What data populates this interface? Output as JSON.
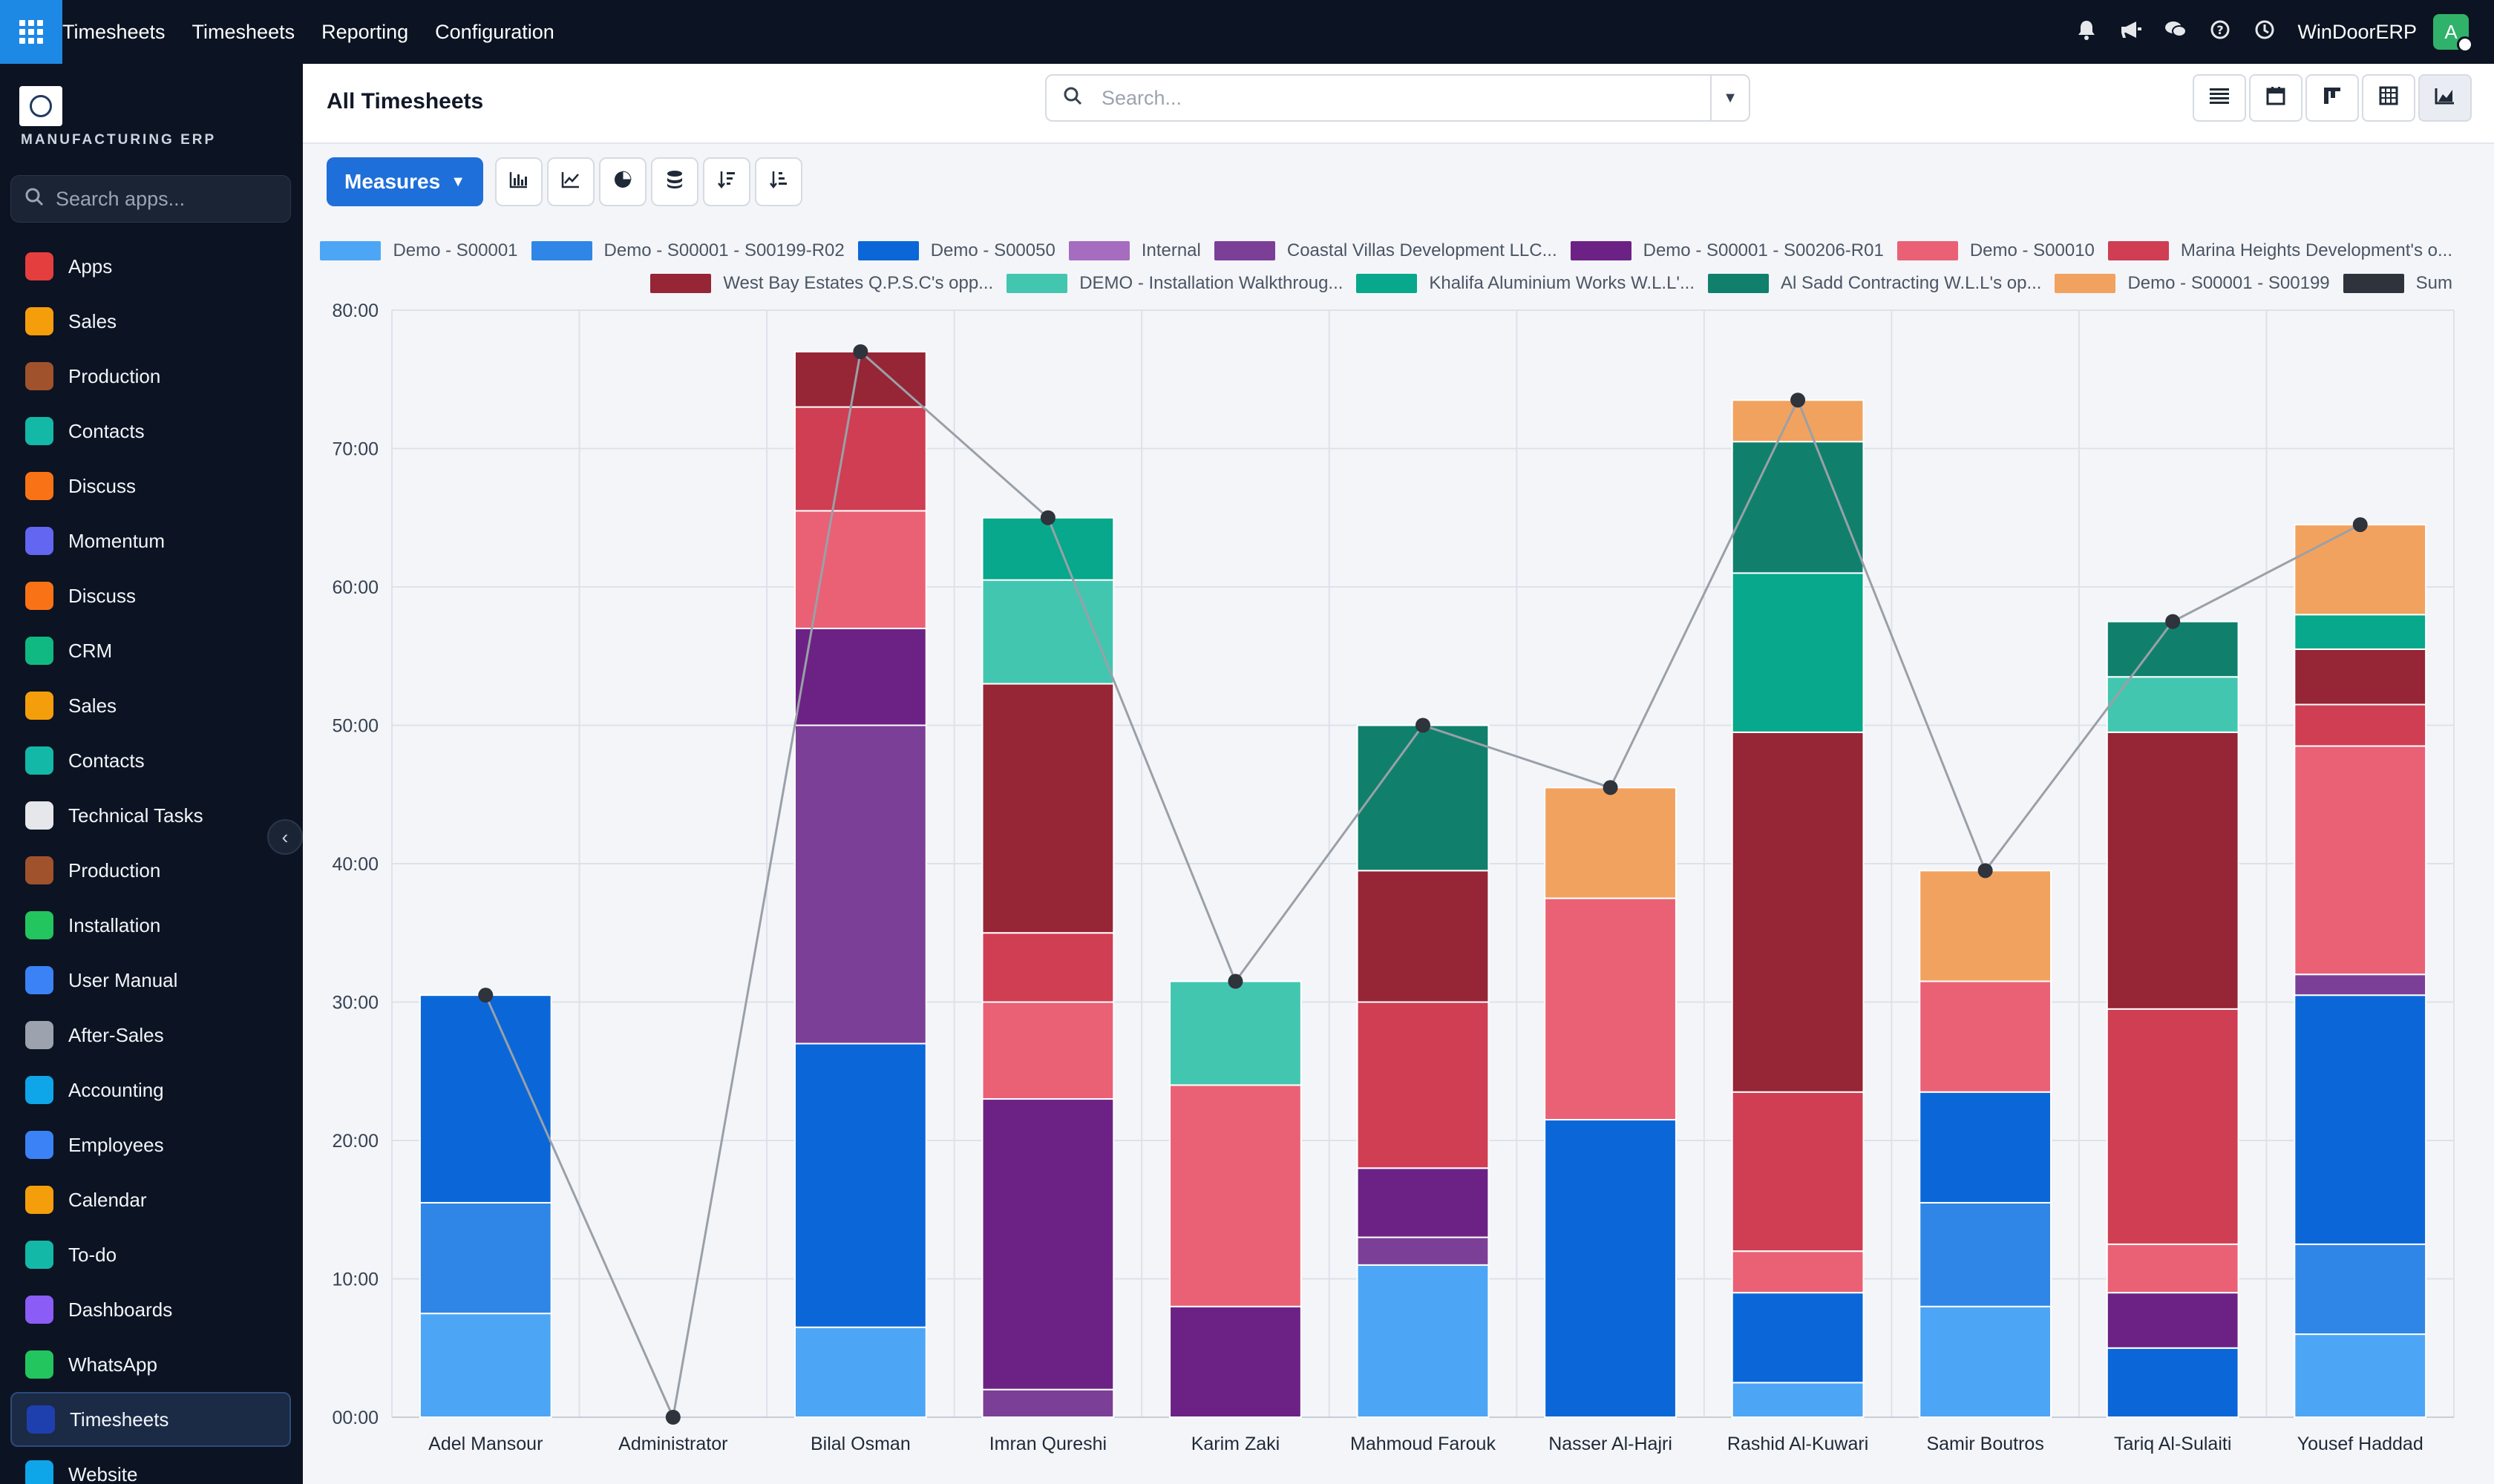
{
  "navbar": {
    "app_name": "Timesheets",
    "menu": [
      "Timesheets",
      "Reporting",
      "Configuration"
    ],
    "company": "WinDoorERP",
    "avatar_letter": "A",
    "icons": [
      "bell-icon",
      "megaphone-icon",
      "chat-icon",
      "help-icon",
      "clock-icon"
    ]
  },
  "sidebar": {
    "company_name": "MANUFACTURING ERP",
    "search_placeholder": "Search apps...",
    "items": [
      {
        "label": "Apps",
        "icon": "apps-icon",
        "color": "#e53e3e"
      },
      {
        "label": "Sales",
        "icon": "sales-icon",
        "color": "#f59e0b"
      },
      {
        "label": "Production",
        "icon": "production-icon",
        "color": "#a0522d"
      },
      {
        "label": "Contacts",
        "icon": "contacts-icon",
        "color": "#14b8a6"
      },
      {
        "label": "Discuss",
        "icon": "discuss-icon",
        "color": "#f97316"
      },
      {
        "label": "Momentum",
        "icon": "momentum-icon",
        "color": "#6366f1"
      },
      {
        "label": "Discuss",
        "icon": "discuss-icon",
        "color": "#f97316"
      },
      {
        "label": "CRM",
        "icon": "crm-icon",
        "color": "#10b981"
      },
      {
        "label": "Sales",
        "icon": "sales-icon",
        "color": "#f59e0b"
      },
      {
        "label": "Contacts",
        "icon": "contacts-icon",
        "color": "#14b8a6"
      },
      {
        "label": "Technical Tasks",
        "icon": "technical-tasks-icon",
        "color": "#e5e7eb"
      },
      {
        "label": "Production",
        "icon": "production-icon",
        "color": "#a0522d"
      },
      {
        "label": "Installation",
        "icon": "installation-icon",
        "color": "#22c55e"
      },
      {
        "label": "User Manual",
        "icon": "user-manual-icon",
        "color": "#3b82f6"
      },
      {
        "label": "After-Sales",
        "icon": "after-sales-icon",
        "color": "#9ca3af"
      },
      {
        "label": "Accounting",
        "icon": "accounting-icon",
        "color": "#0ea5e9"
      },
      {
        "label": "Employees",
        "icon": "employees-icon",
        "color": "#3b82f6"
      },
      {
        "label": "Calendar",
        "icon": "calendar-icon",
        "color": "#f59e0b"
      },
      {
        "label": "To-do",
        "icon": "todo-icon",
        "color": "#14b8a6"
      },
      {
        "label": "Dashboards",
        "icon": "dashboards-icon",
        "color": "#8b5cf6"
      },
      {
        "label": "WhatsApp",
        "icon": "whatsapp-icon",
        "color": "#22c55e"
      },
      {
        "label": "Timesheets",
        "icon": "timesheets-icon",
        "color": "#1e40af",
        "active": true
      },
      {
        "label": "Website",
        "icon": "website-icon",
        "color": "#0ea5e9"
      }
    ]
  },
  "control": {
    "title": "All Timesheets",
    "search_placeholder": "Search...",
    "views": [
      "list-view-icon",
      "calendar-view-icon",
      "kanban-view-icon",
      "pivot-view-icon",
      "graph-view-icon"
    ],
    "active_view": "graph-view-icon"
  },
  "toolbar": {
    "measures_label": "Measures",
    "buttons": [
      "bar-chart-icon",
      "line-chart-icon",
      "pie-chart-icon",
      "stacked-icon",
      "sort-descending-icon",
      "sort-ascending-icon"
    ]
  },
  "chart_data": {
    "type": "bar",
    "stacked": true,
    "categories": [
      "Adel Mansour",
      "Administrator",
      "Bilal Osman",
      "Imran Qureshi",
      "Karim Zaki",
      "Mahmoud Farouk",
      "Nasser Al-Hajri",
      "Rashid Al-Kuwari",
      "Samir Boutros",
      "Tariq Al-Sulaiti",
      "Yousef Haddad"
    ],
    "ylim": [
      0,
      80
    ],
    "yticks": [
      "00:00",
      "10:00",
      "20:00",
      "30:00",
      "40:00",
      "50:00",
      "60:00",
      "70:00",
      "80:00"
    ],
    "grid": true,
    "legend_position": "top",
    "series": [
      {
        "name": "Demo - S00001",
        "color": "#4da6f5",
        "values": [
          7.5,
          0,
          6.5,
          0,
          0,
          11,
          0,
          2.5,
          8,
          0,
          6
        ]
      },
      {
        "name": "Demo - S00001 - S00199-R02",
        "color": "#2f86e6",
        "values": [
          8,
          0,
          0,
          0,
          0,
          0,
          0,
          0,
          7.5,
          0,
          6.5
        ]
      },
      {
        "name": "Demo - S00050",
        "color": "#0b67d8",
        "values": [
          15,
          0,
          20.5,
          0,
          0,
          0,
          21.5,
          6.5,
          8,
          5,
          18
        ]
      },
      {
        "name": "Internal",
        "color": "#a66cc0",
        "values": [
          0,
          0,
          0,
          0,
          0,
          0,
          0,
          0,
          0,
          0,
          0
        ]
      },
      {
        "name": "Coastal Villas Development LLC...",
        "color": "#7c3f97",
        "values": [
          0,
          0,
          23,
          2,
          0,
          2,
          0,
          0,
          0,
          0,
          1.5
        ]
      },
      {
        "name": "Demo - S00001 - S00206-R01",
        "color": "#6c2285",
        "values": [
          0,
          0,
          7,
          21,
          8,
          5,
          0,
          0,
          0,
          4,
          0
        ]
      },
      {
        "name": "Demo - S00010",
        "color": "#ea6176",
        "values": [
          0,
          0,
          8.5,
          7,
          16,
          0,
          16,
          3,
          8,
          3.5,
          16.5
        ]
      },
      {
        "name": "Marina Heights Development's o...",
        "color": "#cf3e52",
        "values": [
          0,
          0,
          7.5,
          5,
          0,
          12,
          0,
          11.5,
          0,
          17,
          3
        ]
      },
      {
        "name": "West Bay Estates Q.P.S.C's opp...",
        "color": "#962536",
        "values": [
          0,
          0,
          4,
          18,
          0,
          9.5,
          0,
          26,
          0,
          20,
          4
        ]
      },
      {
        "name": "DEMO - Installation Walkthroug...",
        "color": "#43c6b0",
        "values": [
          0,
          0,
          0,
          7.5,
          7.5,
          0,
          0,
          0,
          0,
          4,
          0
        ]
      },
      {
        "name": "Khalifa Aluminium Works W.L.L'...",
        "color": "#07a88b",
        "values": [
          0,
          0,
          0,
          4.5,
          0,
          0,
          0,
          11.5,
          0,
          0,
          2.5
        ]
      },
      {
        "name": "Al Sadd Contracting W.L.L's op...",
        "color": "#10806d",
        "values": [
          0,
          0,
          0,
          0,
          0,
          10.5,
          0,
          9.5,
          0,
          4,
          0
        ]
      },
      {
        "name": "Demo - S00001 - S00199",
        "color": "#f2a25f",
        "values": [
          0,
          0,
          0,
          0,
          0,
          0,
          8,
          3,
          8,
          0,
          6.5
        ]
      },
      {
        "name": "Sum",
        "color": "#2f333b",
        "type": "line",
        "values": [
          30.5,
          0,
          77,
          65,
          31.5,
          50,
          45.5,
          73.5,
          39.5,
          57.5,
          64.5
        ]
      }
    ]
  }
}
